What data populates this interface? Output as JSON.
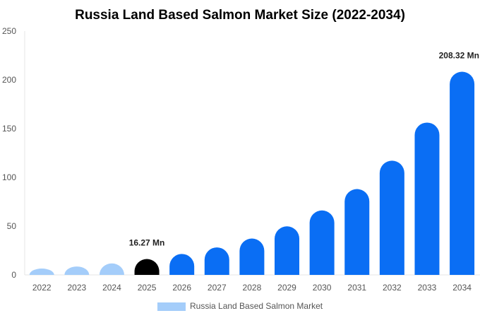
{
  "chart_data": {
    "type": "bar",
    "title": "Russia Land Based Salmon Market Size (2022-2034)",
    "xlabel": "",
    "ylabel": "",
    "categories": [
      "2022",
      "2023",
      "2024",
      "2025",
      "2026",
      "2027",
      "2028",
      "2029",
      "2030",
      "2031",
      "2032",
      "2033",
      "2034"
    ],
    "series": [
      {
        "name": "Russia Land Based Salmon Market",
        "values": [
          6.5,
          8.6,
          11.8,
          16.27,
          21.5,
          28.2,
          37.3,
          49.8,
          66.1,
          88.0,
          117.1,
          156.2,
          208.32
        ]
      }
    ],
    "bar_colors": [
      "#a4cdfa",
      "#a4cdfa",
      "#a4cdfa",
      "#000000",
      "#0a6ef4",
      "#0a6ef4",
      "#0a6ef4",
      "#0a6ef4",
      "#0a6ef4",
      "#0a6ef4",
      "#0a6ef4",
      "#0a6ef4",
      "#0a6ef4"
    ],
    "data_labels": [
      {
        "index": 3,
        "text": "16.27 Mn"
      },
      {
        "index": 12,
        "text": "208.32 Mn"
      }
    ],
    "ylim": [
      0,
      250
    ],
    "yticks": [
      0,
      50,
      100,
      150,
      200,
      250
    ],
    "grid": false,
    "legend": {
      "position": "bottom-center",
      "color": "#a4cdfa"
    }
  }
}
